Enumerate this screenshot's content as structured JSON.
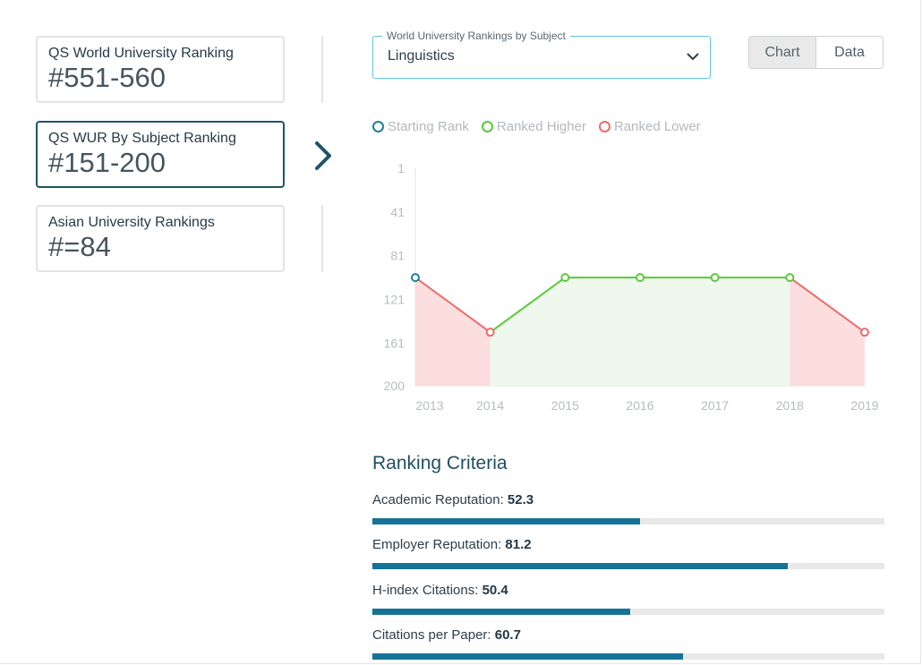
{
  "rankings": [
    {
      "label": "QS World University Ranking",
      "value": "#551-560"
    },
    {
      "label": "QS WUR By Subject Ranking",
      "value": "#151-200"
    },
    {
      "label": "Asian University Rankings",
      "value": "#=84"
    }
  ],
  "subject_select": {
    "legend": "World University Rankings by Subject",
    "value": "Linguistics"
  },
  "view_toggle": {
    "chart": "Chart",
    "data": "Data"
  },
  "legend": {
    "starting": "Starting Rank",
    "higher": "Ranked Higher",
    "lower": "Ranked Lower",
    "colors": {
      "starting": "#1d7fa3",
      "higher": "#5cc93a",
      "lower": "#ee6b6b"
    }
  },
  "chart_data": {
    "type": "line",
    "x": [
      "2013",
      "2014",
      "2015",
      "2016",
      "2017",
      "2018",
      "2019"
    ],
    "y": [
      101,
      151,
      101,
      101,
      101,
      101,
      151
    ],
    "y_ticks": [
      "1",
      "41",
      "81",
      "121",
      "161",
      "200"
    ],
    "ylim": [
      1,
      200
    ],
    "y_inverted": true,
    "segment_status": [
      "lower",
      "higher",
      "higher",
      "higher",
      "higher",
      "lower"
    ]
  },
  "criteria": {
    "title": "Ranking Criteria",
    "items": [
      {
        "label": "Academic Reputation:",
        "value": "52.3",
        "score": 52.3
      },
      {
        "label": "Employer Reputation:",
        "value": "81.2",
        "score": 81.2
      },
      {
        "label": "H-index Citations:",
        "value": "50.4",
        "score": 50.4
      },
      {
        "label": "Citations per Paper:",
        "value": "60.7",
        "score": 60.7
      }
    ]
  }
}
